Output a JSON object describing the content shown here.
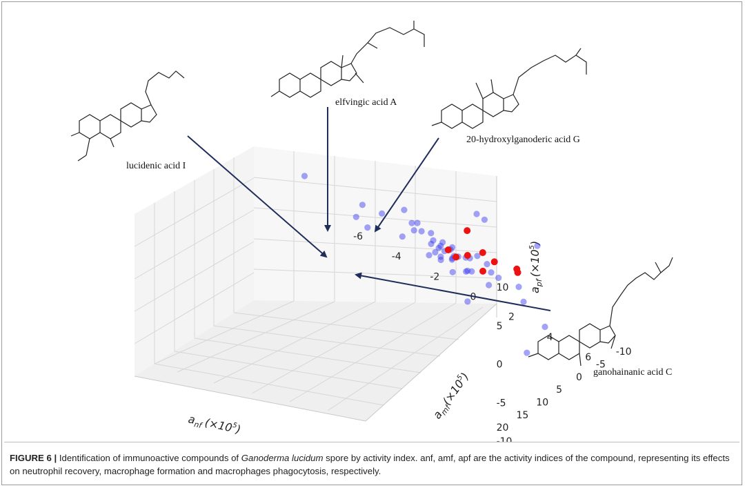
{
  "chart_data": {
    "type": "scatter",
    "dimensions": 3,
    "axes": {
      "x": {
        "label": "a",
        "label_sub": "nf",
        "label_unit": "(×10",
        "label_exp": "5",
        "ticks": [
          "-6",
          "-4",
          "-2",
          "0",
          "2",
          "4",
          "6"
        ],
        "range": [
          -6,
          6
        ]
      },
      "y": {
        "label": "a",
        "label_sub": "mf",
        "label_unit": "(×10",
        "label_exp": "5",
        "ticks": [
          "-10",
          "-5",
          "0",
          "5",
          "10",
          "15",
          "20"
        ],
        "range": [
          -10,
          20
        ]
      },
      "z": {
        "label": "a",
        "label_sub": "pf",
        "label_unit": "(×10",
        "label_exp": "5",
        "ticks": [
          "10",
          "5",
          "0",
          "-5",
          "-10"
        ],
        "range": [
          -10,
          10
        ]
      }
    },
    "grid": true,
    "series": [
      {
        "color": "#3333ee",
        "points": [
          {
            "x": -4.6,
            "y": 14,
            "z": 6
          },
          {
            "x": 0.8,
            "y": 15,
            "z": 9
          },
          {
            "x": -2.0,
            "y": 12,
            "z": 5
          },
          {
            "x": -1.4,
            "y": 10,
            "z": 4
          },
          {
            "x": 2.5,
            "y": 3,
            "z": 6
          },
          {
            "x": -4.4,
            "y": 2,
            "z": -3
          },
          {
            "x": -3.6,
            "y": 3,
            "z": -3
          },
          {
            "x": 3.8,
            "y": -4,
            "z": 2
          },
          {
            "x": -1,
            "y": 3,
            "z": 1
          },
          {
            "x": -0.5,
            "y": 2,
            "z": 0
          },
          {
            "x": 0,
            "y": 2,
            "z": -1
          },
          {
            "x": -0.3,
            "y": 1,
            "z": -2
          },
          {
            "x": 0.4,
            "y": 1,
            "z": -1
          },
          {
            "x": -0.8,
            "y": 0,
            "z": -2
          },
          {
            "x": 0.2,
            "y": 0,
            "z": -3
          },
          {
            "x": -0.2,
            "y": 1,
            "z": -3
          },
          {
            "x": 0.6,
            "y": 2,
            "z": -2
          },
          {
            "x": -0.6,
            "y": 2,
            "z": -3
          },
          {
            "x": 0.9,
            "y": 0,
            "z": -2
          },
          {
            "x": -1.2,
            "y": 1,
            "z": -1
          },
          {
            "x": 1.2,
            "y": 1,
            "z": -3
          },
          {
            "x": 0.3,
            "y": -1,
            "z": -3
          },
          {
            "x": -0.4,
            "y": 0,
            "z": -4
          },
          {
            "x": 0,
            "y": 1,
            "z": -2
          },
          {
            "x": 0.1,
            "y": 0,
            "z": -2
          },
          {
            "x": -0.1,
            "y": 1,
            "z": -1
          },
          {
            "x": 0.5,
            "y": 1,
            "z": -2
          },
          {
            "x": -0.7,
            "y": 1,
            "z": -2
          },
          {
            "x": 1.5,
            "y": 0,
            "z": -1
          },
          {
            "x": -1.5,
            "y": 2,
            "z": 0
          },
          {
            "x": 1.8,
            "y": -1,
            "z": -2
          },
          {
            "x": -1.8,
            "y": 0,
            "z": -2
          },
          {
            "x": 2.1,
            "y": 0,
            "z": -4
          },
          {
            "x": 1,
            "y": -1,
            "z": -4
          },
          {
            "x": -0.9,
            "y": -1,
            "z": -4
          },
          {
            "x": 0.7,
            "y": -2,
            "z": -3
          },
          {
            "x": 2.4,
            "y": -1,
            "z": -3
          },
          {
            "x": -2.2,
            "y": 1,
            "z": -3
          },
          {
            "x": 3.5,
            "y": -2,
            "z": -5
          },
          {
            "x": 1.6,
            "y": -3,
            "z": -4
          },
          {
            "x": 0.5,
            "y": -2,
            "z": -5
          },
          {
            "x": -0.4,
            "y": -9,
            "z": -1
          },
          {
            "x": 4.2,
            "y": -4,
            "z": -8
          },
          {
            "x": 2.0,
            "y": -8,
            "z": -7
          },
          {
            "x": 4.5,
            "y": 2,
            "z": -9
          },
          {
            "x": 1.2,
            "y": 1,
            "z": -7
          },
          {
            "x": -0.2,
            "y": -2,
            "z": -6
          }
        ]
      },
      {
        "color": "#ee1111",
        "points": [
          {
            "x": 1.8,
            "y": 4,
            "z": 4
          },
          {
            "x": 4.6,
            "y": 5,
            "z": 3
          },
          {
            "x": 2.2,
            "y": 2,
            "z": 1
          },
          {
            "x": 2.6,
            "y": 1,
            "z": 0
          },
          {
            "x": 3.4,
            "y": -1,
            "z": -1
          },
          {
            "x": 0.4,
            "y": 2,
            "z": -1
          },
          {
            "x": 1.2,
            "y": 1,
            "z": -1
          },
          {
            "x": 2.0,
            "y": 1,
            "z": -2
          },
          {
            "x": 0.6,
            "y": 1,
            "z": -2
          }
        ]
      }
    ],
    "annotations": [
      "elfvingic acid A",
      "20-hydroxylganoderic acid G",
      "lucidenic acid I",
      "ganohainanic acid C"
    ]
  },
  "caption": {
    "label": "FIGURE 6 |",
    "text_before": " Identification of immunoactive compounds of ",
    "species": "Ganoderma lucidum",
    "text_after": " spore by activity index. anf, amf, apf are the activity indices of the compound, representing its effects on neutrophil recovery, macrophage formation and macrophages phagocytosis, respectively."
  },
  "colors": {
    "scatter_blue": "#3333ee",
    "scatter_red": "#ee1111",
    "arrow": "#1f2d5a",
    "grid": "#d9d9d9"
  }
}
